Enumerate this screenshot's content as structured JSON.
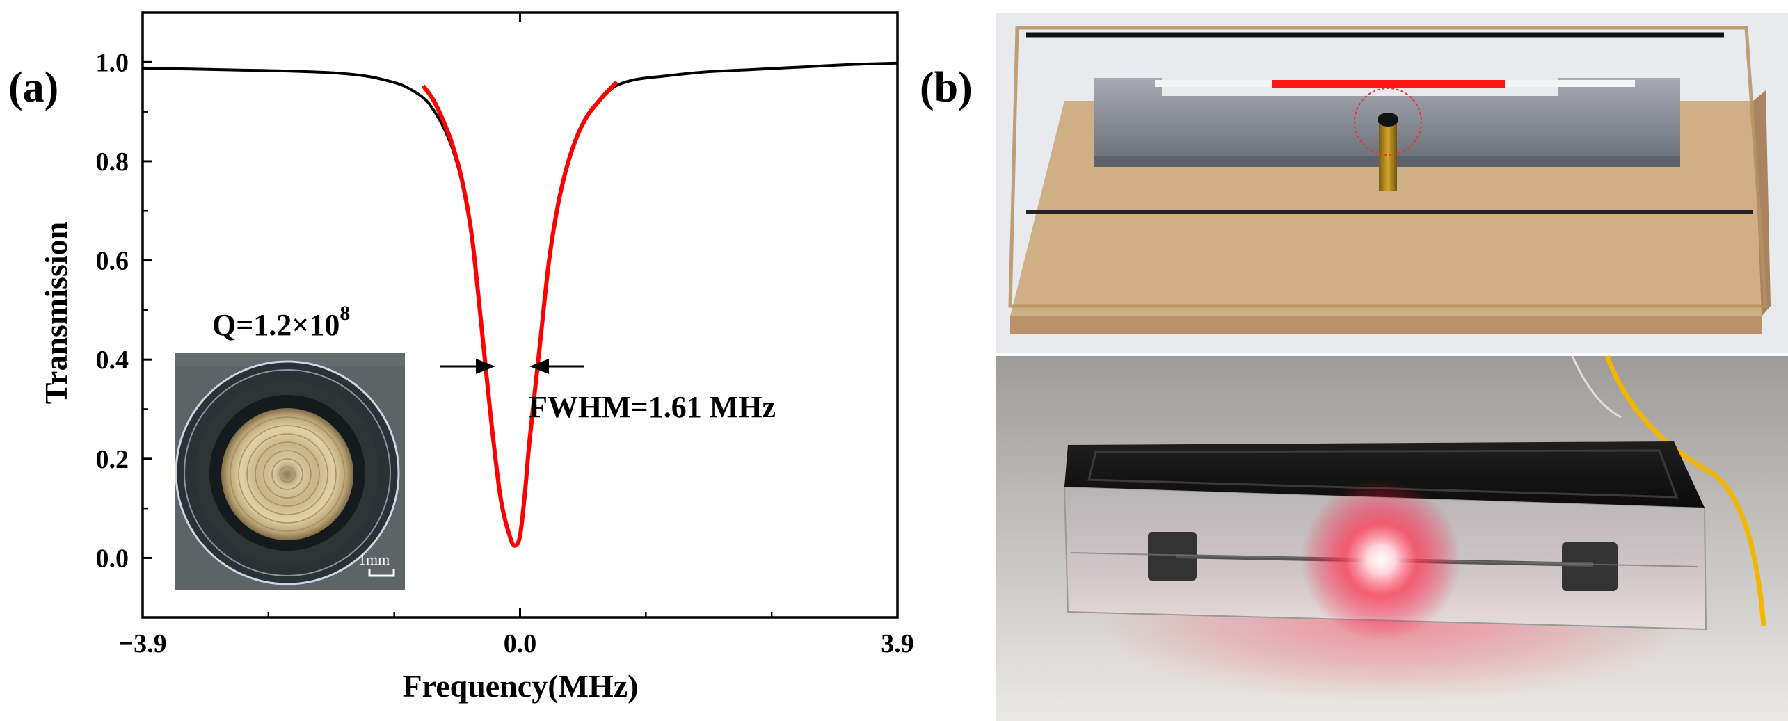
{
  "panels": {
    "a": "(a)",
    "b": "(b)"
  },
  "chart_data": {
    "type": "line",
    "xlabel": "Frequency(MHz)",
    "ylabel": "Transmission",
    "xlim": [
      -3.9,
      3.9
    ],
    "ylim": [
      -0.12,
      1.1
    ],
    "x_tick_labels": [
      "−3.9",
      "0.0",
      "3.9"
    ],
    "x_ticks": [
      -3.9,
      0.0,
      3.9
    ],
    "y_tick_labels": [
      "0.0",
      "0.2",
      "0.4",
      "0.6",
      "0.8",
      "1.0"
    ],
    "y_ticks": [
      0.0,
      0.2,
      0.4,
      0.6,
      0.8,
      1.0
    ],
    "grid": false,
    "series": [
      {
        "role": "measured",
        "color": "#000000",
        "x": [
          -3.9,
          -3.4,
          -2.9,
          -2.4,
          -1.9,
          -1.6,
          -1.4,
          -1.2,
          -1.0,
          -0.9,
          -0.8,
          -0.7,
          -0.6,
          -0.5,
          -0.4,
          -0.3,
          -0.2,
          -0.1,
          -0.05,
          0.0,
          0.05,
          0.1,
          0.2,
          0.3,
          0.4,
          0.5,
          0.6,
          0.7,
          0.8,
          0.9,
          1.0,
          1.2,
          1.5,
          1.9,
          2.4,
          2.9,
          3.4,
          3.9
        ],
        "y": [
          0.988,
          0.986,
          0.984,
          0.982,
          0.978,
          0.972,
          0.964,
          0.952,
          0.928,
          0.905,
          0.872,
          0.826,
          0.756,
          0.648,
          0.47,
          0.28,
          0.12,
          0.04,
          0.025,
          0.045,
          0.13,
          0.24,
          0.42,
          0.6,
          0.72,
          0.8,
          0.855,
          0.893,
          0.918,
          0.938,
          0.953,
          0.965,
          0.972,
          0.98,
          0.985,
          0.99,
          0.995,
          0.998
        ]
      },
      {
        "role": "fit",
        "color": "#ff0000",
        "x": [
          -1.0,
          -0.9,
          -0.8,
          -0.7,
          -0.6,
          -0.5,
          -0.4,
          -0.3,
          -0.2,
          -0.1,
          -0.05,
          0.0,
          0.05,
          0.1,
          0.2,
          0.3,
          0.4,
          0.5,
          0.6,
          0.7,
          0.8,
          0.9,
          1.0
        ],
        "y": [
          0.952,
          0.925,
          0.885,
          0.834,
          0.762,
          0.652,
          0.47,
          0.28,
          0.12,
          0.04,
          0.025,
          0.045,
          0.13,
          0.24,
          0.42,
          0.6,
          0.72,
          0.8,
          0.855,
          0.893,
          0.918,
          0.94,
          0.96
        ]
      }
    ],
    "annotations": {
      "q_label": "Q=1.2×10",
      "q_exponent": "8",
      "fwhm_label": "FWHM=1.61 MHz",
      "fwhm_arrow_y": 0.395,
      "inset_scale_label": "1mm"
    }
  }
}
